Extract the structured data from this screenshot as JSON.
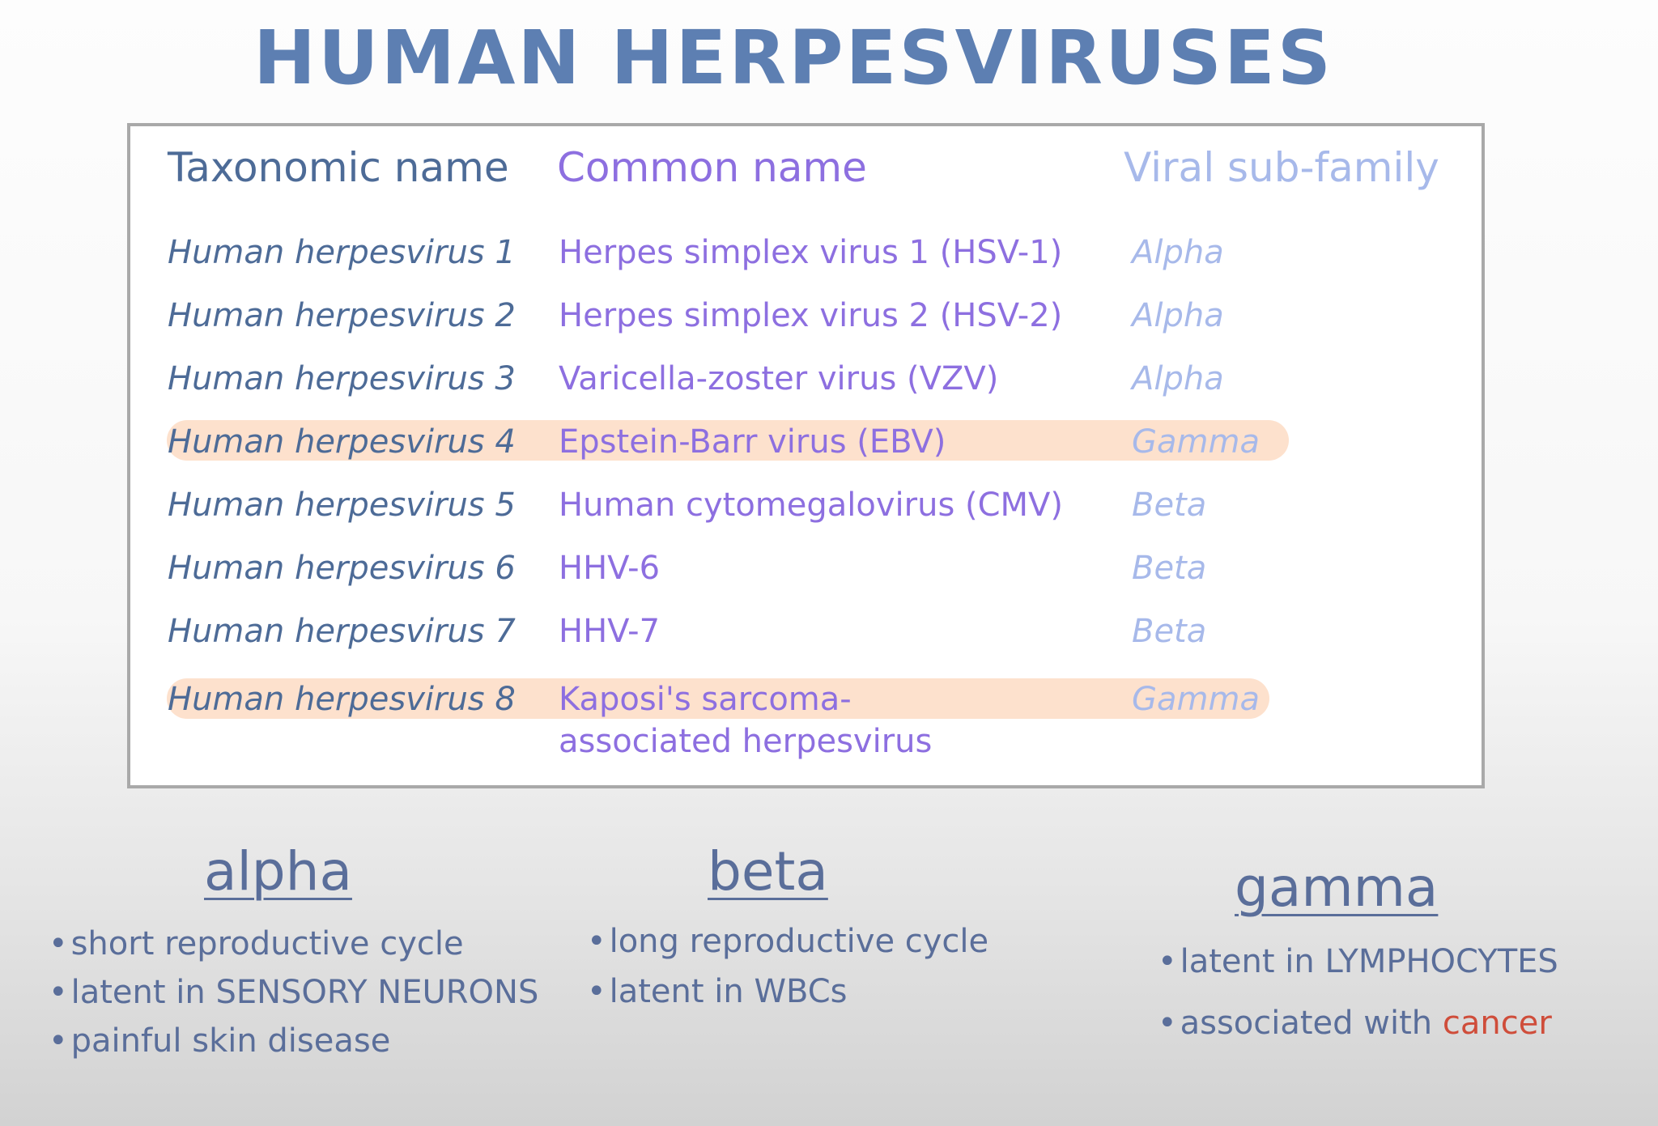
{
  "title": "HUMAN HERPESVIRUSES",
  "table": {
    "headers": {
      "taxonomic": "Taxonomic name",
      "common": "Common name",
      "subfamily": "Viral sub-family"
    },
    "rows": [
      {
        "taxonomic": "Human herpesvirus 1",
        "common": "Herpes simplex virus 1 (HSV-1)",
        "subfamily": "Alpha"
      },
      {
        "taxonomic": "Human herpesvirus 2",
        "common": "Herpes simplex virus 2 (HSV-2)",
        "subfamily": "Alpha"
      },
      {
        "taxonomic": "Human herpesvirus 3",
        "common": "Varicella-zoster virus (VZV)",
        "subfamily": "Alpha"
      },
      {
        "taxonomic": "Human herpesvirus 4",
        "common": "Epstein-Barr virus (EBV)",
        "subfamily": "Gamma"
      },
      {
        "taxonomic": "Human herpesvirus 5",
        "common": "Human cytomegalovirus (CMV)",
        "subfamily": "Beta"
      },
      {
        "taxonomic": "Human herpesvirus 6",
        "common": "HHV-6",
        "subfamily": "Beta"
      },
      {
        "taxonomic": "Human herpesvirus 7",
        "common": "HHV-7",
        "subfamily": "Beta"
      },
      {
        "taxonomic": "Human herpesvirus 8",
        "common_line1": "Kaposi's sarcoma-",
        "common_line2": "associated herpesvirus",
        "subfamily": "Gamma"
      }
    ]
  },
  "subfamilies": {
    "alpha": {
      "title": "alpha",
      "bullets": [
        "short reproductive cycle",
        "latent in SENSORY NEURONS",
        "painful skin disease"
      ]
    },
    "beta": {
      "title": "beta",
      "bullets": [
        "long reproductive cycle",
        "latent in WBCs"
      ]
    },
    "gamma": {
      "title": "gamma",
      "bullet1": "latent in LYMPHOCYTES",
      "bullet2_prefix": "associated with ",
      "bullet2_highlight": "cancer"
    }
  },
  "colors": {
    "title": "#5d7fb2",
    "taxonomic_text": "#4d6b97",
    "common_text": "#8d6fe0",
    "subfamily_text": "#a7b9ea",
    "highlight": "#fcd6ba",
    "cancer": "#cf4d3a"
  }
}
